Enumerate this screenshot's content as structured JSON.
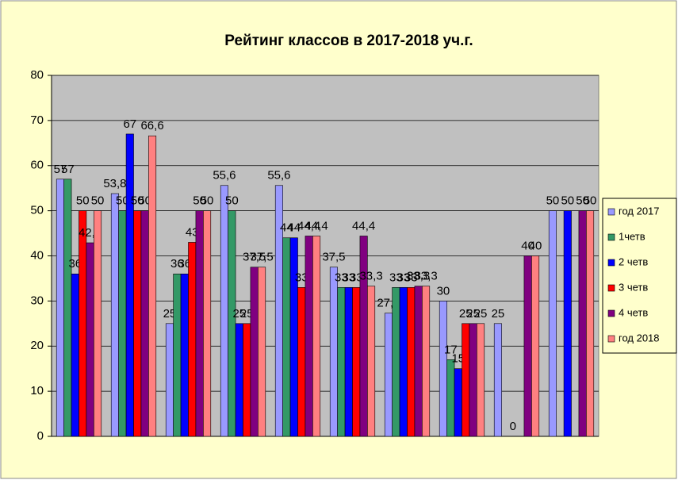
{
  "chart_data": {
    "type": "bar",
    "title": "Рейтинг классов в 2017-2018 уч.г.",
    "categories": [
      null,
      null,
      null,
      null,
      null,
      null,
      null,
      null,
      null,
      null
    ],
    "series": [
      {
        "name": "год 2017",
        "color": "#9999ff",
        "values": [
          57,
          53.8,
          25,
          55.6,
          55.6,
          37.5,
          27.3,
          30,
          25,
          50
        ],
        "value_labels": [
          "57",
          "53,8",
          "25",
          "55,6",
          "55,6",
          "37,5",
          "27,3",
          "30",
          "25",
          "50"
        ]
      },
      {
        "name": "1четв",
        "color": "#339966",
        "values": [
          57,
          50,
          36,
          50,
          44,
          33,
          33,
          17,
          null,
          null
        ],
        "value_labels": [
          "57",
          "50",
          "36",
          "50",
          "44",
          "33",
          "33",
          "17",
          null,
          null
        ]
      },
      {
        "name": "2 четв",
        "color": "#0000ff",
        "values": [
          36,
          67,
          36,
          25,
          44,
          33,
          33,
          15,
          0,
          50
        ],
        "value_labels": [
          "36",
          "67",
          "36",
          "25",
          "44",
          "33",
          "33",
          "15",
          "0",
          "50"
        ]
      },
      {
        "name": "3 четв",
        "color": "#ff0000",
        "values": [
          50,
          50,
          43,
          25,
          33,
          33,
          33,
          25,
          null,
          null
        ],
        "value_labels": [
          "50",
          "50",
          "43",
          "25",
          "33",
          "33",
          "33",
          "25",
          null,
          null
        ]
      },
      {
        "name": "4 четв",
        "color": "#800080",
        "values": [
          42.9,
          50,
          50,
          37.5,
          44.4,
          44.4,
          33.3,
          25,
          40,
          50
        ],
        "value_labels": [
          "42,9",
          "50",
          "50",
          "37,5",
          "44,4",
          "44,4",
          "33,3",
          "25",
          "40",
          "50"
        ]
      },
      {
        "name": "год 2018",
        "color": "#ff8080",
        "values": [
          50,
          66.6,
          50,
          37.5,
          44.4,
          33.3,
          33.3,
          25,
          40,
          50
        ],
        "value_labels": [
          "50",
          "66,6",
          "50",
          "37,5",
          "44,4",
          "33,3",
          "33,3",
          "25",
          "40",
          "50"
        ]
      }
    ],
    "ylim": [
      0,
      80
    ],
    "yticks": [
      0,
      10,
      20,
      30,
      40,
      50,
      60,
      70,
      80
    ],
    "grid": true,
    "legend": "right"
  }
}
